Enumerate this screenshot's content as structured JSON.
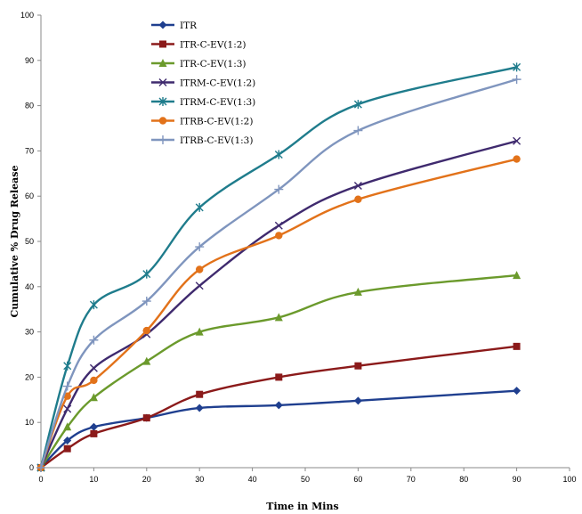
{
  "chart_data": {
    "type": "line",
    "xlabel": "Time in Mins",
    "ylabel": "Cumulative % Drug Release",
    "xlim": [
      0,
      100
    ],
    "ylim": [
      0,
      100
    ],
    "x_ticks": [
      0,
      10,
      20,
      30,
      40,
      50,
      60,
      70,
      80,
      90,
      100
    ],
    "y_ticks": [
      0,
      10,
      20,
      30,
      40,
      50,
      60,
      70,
      80,
      90,
      100
    ],
    "grid": false,
    "legend_position": "top-left",
    "x": [
      0,
      5,
      10,
      20,
      30,
      45,
      60,
      90
    ],
    "series": [
      {
        "name": "ITR",
        "color": "#1F3F8F",
        "marker": "diamond",
        "values": [
          0,
          6,
          9,
          11,
          13.2,
          13.8,
          14.8,
          17
        ]
      },
      {
        "name": "ITR-C-EV(1:2)",
        "color": "#8B1A1A",
        "marker": "square",
        "values": [
          0,
          4.2,
          7.5,
          11,
          16.2,
          20,
          22.5,
          26.8
        ]
      },
      {
        "name": "ITR-C-EV(1:3)",
        "color": "#6B9A2C",
        "marker": "triangle",
        "values": [
          0,
          9,
          15.5,
          23.5,
          30,
          33.2,
          38.8,
          42.5
        ]
      },
      {
        "name": "ITRM-C-EV(1:2)",
        "color": "#3F2A6E",
        "marker": "x",
        "values": [
          0,
          13,
          22,
          29.5,
          40.2,
          53.5,
          62.3,
          72.2
        ]
      },
      {
        "name": "ITRM-C-EV(1:3)",
        "color": "#1F7C8C",
        "marker": "star",
        "values": [
          0,
          22.5,
          36,
          42.8,
          57.5,
          69.2,
          80.3,
          88.5
        ]
      },
      {
        "name": "ITRB-C-EV(1:2)",
        "color": "#E2721A",
        "marker": "circle",
        "values": [
          0,
          15.8,
          19.3,
          30.3,
          43.8,
          51.3,
          59.3,
          68.2
        ]
      },
      {
        "name": "ITRB-C-EV(1:3)",
        "color": "#7F95BE",
        "marker": "plus",
        "values": [
          0,
          18,
          28.2,
          36.8,
          48.8,
          61.5,
          74.5,
          85.8
        ]
      }
    ]
  }
}
